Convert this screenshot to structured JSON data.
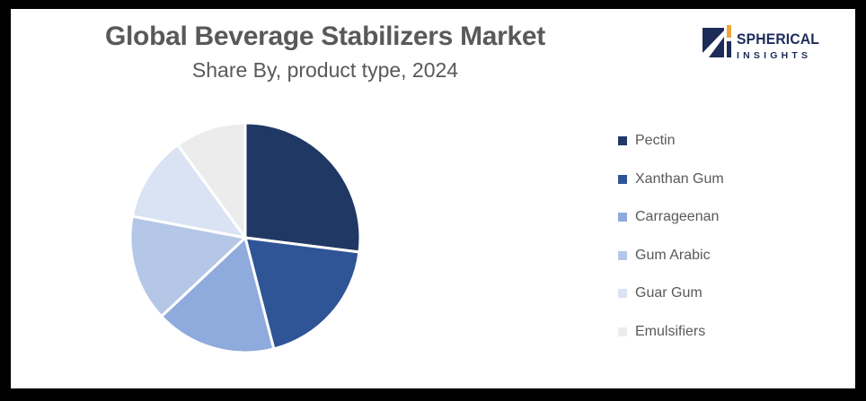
{
  "brand": {
    "name": "SPHERICAL",
    "subname": "INSIGHTS",
    "navy": "#1C2B58",
    "orange": "#F0A63C"
  },
  "chart_data": {
    "type": "pie",
    "title": "Global Beverage Stabilizers Market",
    "subtitle": "Share By, product type, 2024",
    "unit": "% market share",
    "values_are_estimates": true,
    "start_angle_deg": 0,
    "direction": "clockwise",
    "legend_position": "right",
    "data_labels_shown": false,
    "series": [
      {
        "name": "Pectin",
        "value": 27,
        "color": "#203864"
      },
      {
        "name": "Xanthan Gum",
        "value": 19,
        "color": "#2F5597"
      },
      {
        "name": "Carrageenan",
        "value": 17,
        "color": "#8FAADC"
      },
      {
        "name": "Gum Arabic",
        "value": 15,
        "color": "#B4C7E7"
      },
      {
        "name": "Guar Gum",
        "value": 12,
        "color": "#DAE3F3"
      },
      {
        "name": "Emulsifiers",
        "value": 10,
        "color": "#ECECEC"
      }
    ]
  },
  "style": {
    "title_color": "#595959",
    "subtitle_color": "#595959",
    "legend_text_color": "#595959",
    "slice_gap_color": "#FFFFFF",
    "background": "#FFFFFF",
    "frame_color": "#000000"
  }
}
